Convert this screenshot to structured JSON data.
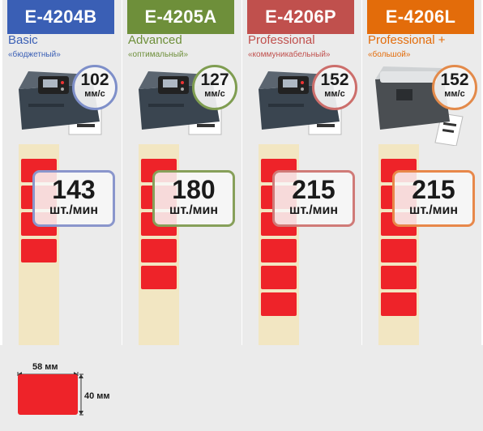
{
  "models": [
    {
      "name": "E-4204B",
      "tier": "Basic",
      "tier_sub": "«бюджетный»",
      "speed": "102",
      "speed_unit": "мм/с",
      "rate": "143",
      "rate_unit": "шт./мин",
      "color": "#3a5fb5",
      "circle_color": "#7e8fc9",
      "box_color": "#8a96cc",
      "labels": 4
    },
    {
      "name": "E-4205A",
      "tier": "Advanced",
      "tier_sub": "«оптимальный»",
      "speed": "127",
      "speed_unit": "мм/с",
      "rate": "180",
      "rate_unit": "шт./мин",
      "color": "#6e8f3a",
      "circle_color": "#7f9d51",
      "box_color": "#87a05a",
      "labels": 5
    },
    {
      "name": "E-4206P",
      "tier": "Professional",
      "tier_sub": "«коммуникабельный»",
      "speed": "152",
      "speed_unit": "мм/с",
      "rate": "215",
      "rate_unit": "шт./мин",
      "color": "#c0504d",
      "circle_color": "#cc6e6b",
      "box_color": "#d07b78",
      "labels": 6
    },
    {
      "name": "E-4206L",
      "tier": "Professional +",
      "tier_sub": "«большой»",
      "speed": "152",
      "speed_unit": "мм/с",
      "rate": "215",
      "rate_unit": "шт./мин",
      "color": "#e36c0a",
      "circle_color": "#e38a4a",
      "box_color": "#e8884a",
      "labels": 6
    }
  ],
  "dimensions": {
    "width": "58 мм",
    "height": "40 мм"
  }
}
